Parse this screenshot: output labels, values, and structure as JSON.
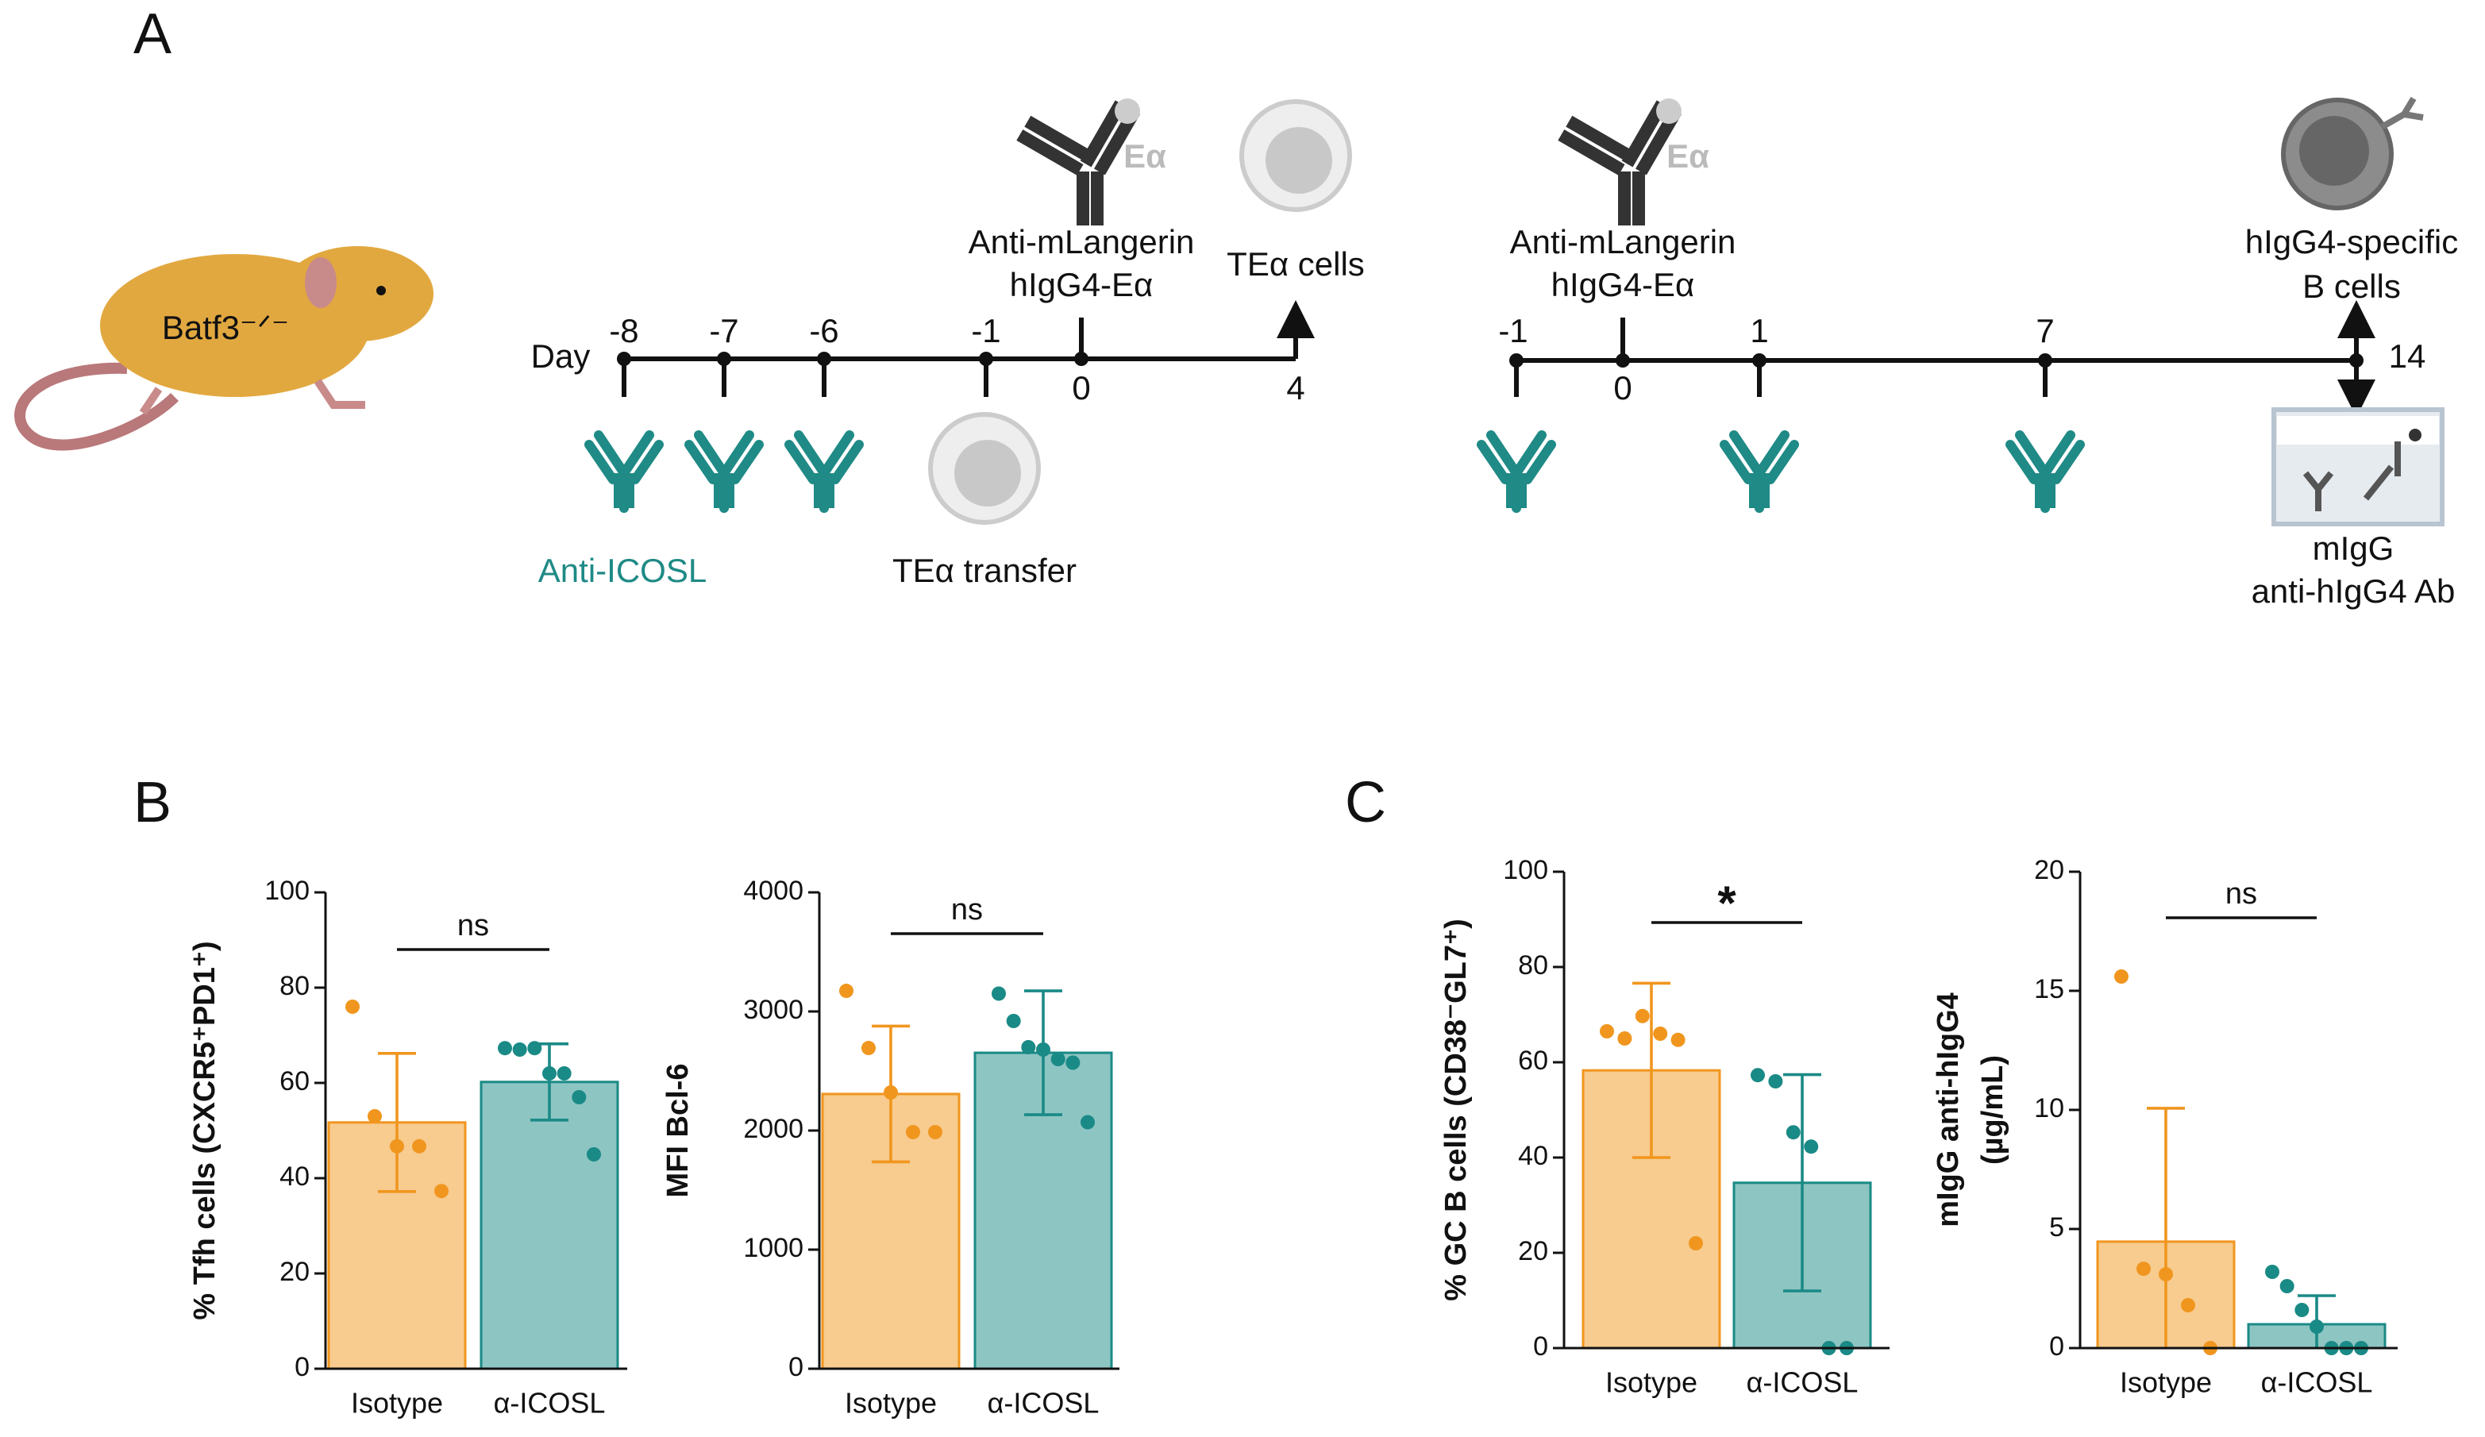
{
  "figure": {
    "panel_labels": [
      "A",
      "B",
      "C"
    ]
  },
  "diagram": {
    "mouse_label": "Batf3⁻ᐟ⁻",
    "day_label": "Day",
    "timeline1": {
      "days": [
        "-8",
        "-7",
        "-6",
        "-1",
        "0",
        "4"
      ],
      "antibody_label": [
        "Anti-mLangerin",
        "hIgG4-Eα"
      ],
      "antigen": "Eα",
      "end_label": "TEα cells",
      "treatment": "Anti-ICOSL",
      "transfer": "TEα transfer"
    },
    "timeline2": {
      "days": [
        "-1",
        "0",
        "1",
        "7",
        "14"
      ],
      "antibody_label": [
        "Anti-mLangerin",
        "hIgG4-Eα"
      ],
      "antigen": "Eα",
      "end_label": [
        "hIgG4-specific",
        "B cells"
      ],
      "readout": [
        "mIgG",
        "anti-hIgG4 Ab"
      ]
    }
  },
  "chart_data": [
    {
      "type": "bar",
      "ylabel": [
        "% Tfh cells (CXCR5⁺PD1⁺)"
      ],
      "categories": [
        "Isotype",
        "α-ICOSL"
      ],
      "values": [
        51.7,
        60.2
      ],
      "errors": [
        14.5,
        8
      ],
      "colors": [
        "#f0961e",
        "#1a8a86"
      ],
      "points": [
        [
          76,
          53,
          46.7,
          46.7,
          37.3
        ],
        [
          67.3,
          67,
          67.3,
          62,
          62,
          57,
          45
        ]
      ],
      "ylim": [
        0,
        100
      ],
      "yticks": [
        0,
        20,
        40,
        60,
        80,
        100
      ],
      "significance": "ns"
    },
    {
      "type": "bar",
      "ylabel": [
        "MFI Bcl-6"
      ],
      "categories": [
        "Isotype",
        "α-ICOSL"
      ],
      "values": [
        2307,
        2653
      ],
      "errors": [
        570,
        520
      ],
      "colors": [
        "#f0961e",
        "#1a8a86"
      ],
      "points": [
        [
          3173,
          2693,
          2320,
          1987,
          1987
        ],
        [
          3150,
          2920,
          2700,
          2680,
          2600,
          2570,
          2070
        ]
      ],
      "ylim": [
        0,
        4000
      ],
      "yticks": [
        0,
        1000,
        2000,
        3000,
        4000
      ],
      "significance": "ns"
    },
    {
      "type": "bar",
      "ylabel": [
        "% GC B cells (CD38⁻GL7⁺)"
      ],
      "categories": [
        "Isotype",
        "α-ICOSL"
      ],
      "values": [
        58.3,
        34.7
      ],
      "errors": [
        18.3,
        22.7
      ],
      "colors": [
        "#f0961e",
        "#1a8a86"
      ],
      "points": [
        [
          66.5,
          65,
          69.7,
          66,
          64.7,
          22
        ],
        [
          57.3,
          56,
          45.3,
          42.3,
          0,
          0
        ]
      ],
      "ylim": [
        0,
        100
      ],
      "yticks": [
        0,
        20,
        40,
        60,
        80,
        100
      ],
      "significance": "*"
    },
    {
      "type": "bar",
      "ylabel": [
        "mIgG anti-hIgG4",
        "(µg/mL)"
      ],
      "categories": [
        "Isotype",
        "α-ICOSL"
      ],
      "values": [
        4.47,
        1.0
      ],
      "errors": [
        5.6,
        1.2
      ],
      "colors": [
        "#f0961e",
        "#1a8a86"
      ],
      "points": [
        [
          15.6,
          3.33,
          3.1,
          1.8,
          0
        ],
        [
          3.2,
          2.6,
          1.6,
          0.9,
          0,
          0,
          0
        ]
      ],
      "ylim": [
        0,
        20
      ],
      "yticks": [
        0,
        5,
        10,
        15,
        20
      ],
      "significance": "ns"
    }
  ]
}
